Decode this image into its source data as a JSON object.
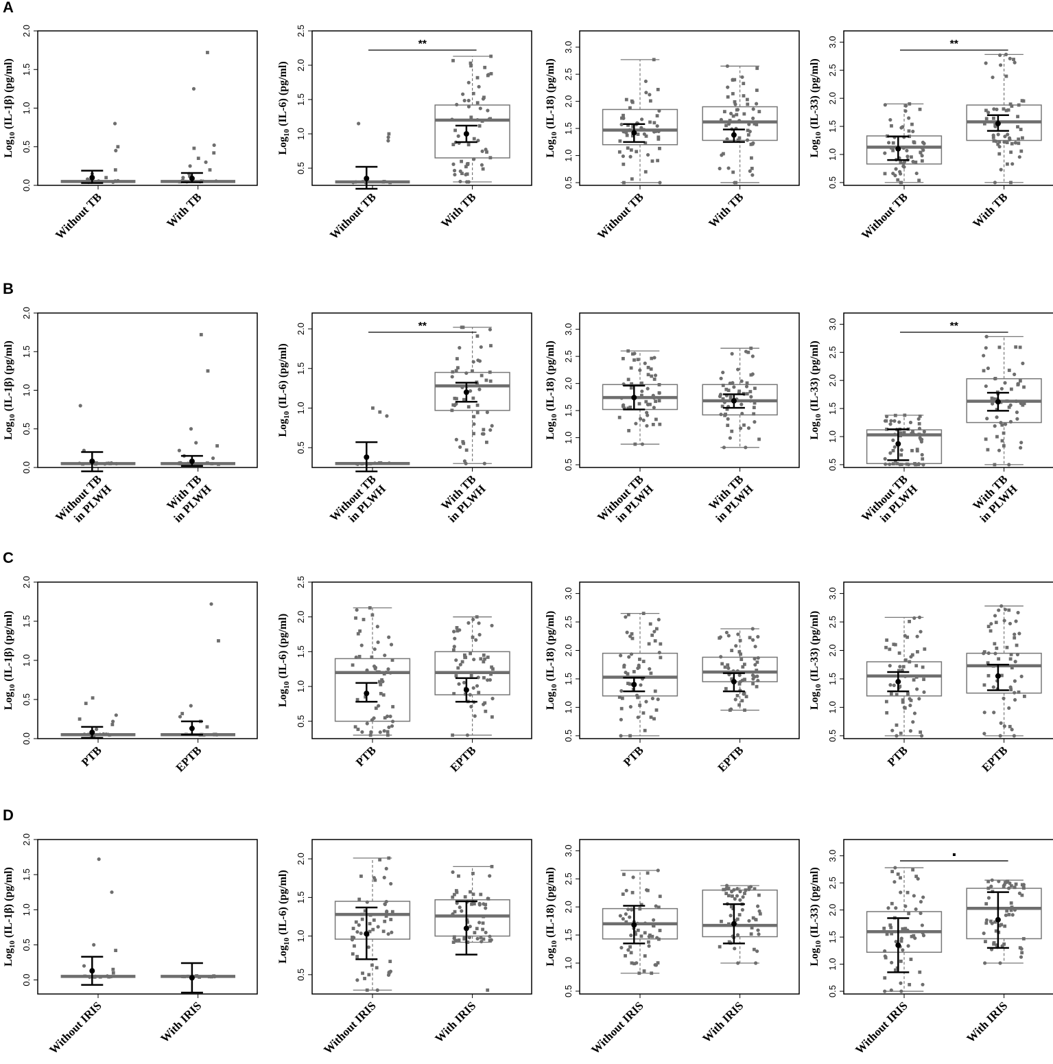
{
  "panel_letters": [
    "A",
    "B",
    "C",
    "D"
  ],
  "colors": {
    "box": "#777777",
    "median": "#6e6e6e",
    "point": "#6e6e6e",
    "errorbar": "#000000",
    "frame": "#000000"
  },
  "chart_data": [
    {
      "panel": "A",
      "type": "box",
      "ylabel": "Log10 (IL-1β) (pg/ml)",
      "ylim": [
        0,
        2
      ],
      "yticks": [
        "0.0",
        "0.5",
        "1.0",
        "1.5",
        "2.0"
      ],
      "categories": [
        "Without TB",
        "With TB"
      ],
      "groups": [
        {
          "q1": 0.05,
          "median": 0.05,
          "q3": 0.05,
          "whisker_low": 0.05,
          "whisker_high": 0.05,
          "mean": 0.1,
          "ci": [
            0.03,
            0.19
          ],
          "outliers": [
            0.8,
            0.5,
            0.45,
            0.2,
            0.15,
            0.1,
            0.08
          ]
        },
        {
          "q1": 0.05,
          "median": 0.05,
          "q3": 0.05,
          "whisker_low": 0.05,
          "whisker_high": 0.05,
          "mean": 0.09,
          "ci": [
            0.04,
            0.16
          ],
          "outliers": [
            1.72,
            1.25,
            0.52,
            0.48,
            0.42,
            0.35,
            0.3,
            0.25,
            0.2,
            0.15,
            0.12,
            0.1
          ]
        }
      ],
      "sig": ""
    },
    {
      "panel": "A",
      "type": "box",
      "ylabel": "Log10 (IL-6) (pg/ml)",
      "ylim": [
        0.25,
        2.5
      ],
      "yticks": [
        "0.5",
        "1.0",
        "1.5",
        "2.0",
        "2.5"
      ],
      "categories": [
        "Without TB",
        "With TB"
      ],
      "groups": [
        {
          "q1": 0.3,
          "median": 0.3,
          "q3": 0.3,
          "whisker_low": 0.3,
          "whisker_high": 0.3,
          "mean": 0.35,
          "ci": [
            0.2,
            0.52
          ],
          "outliers": [
            1.15,
            1.0,
            0.95,
            0.9
          ]
        },
        {
          "q1": 0.65,
          "median": 1.2,
          "q3": 1.42,
          "whisker_low": 0.3,
          "whisker_high": 2.13,
          "mean": 1.0,
          "ci": [
            0.88,
            1.12
          ]
        }
      ],
      "sig": "**"
    },
    {
      "panel": "A",
      "type": "box",
      "ylabel": "Log10 (IL-18) (pg/ml)",
      "ylim": [
        0.45,
        3.3
      ],
      "yticks": [
        "0.5",
        "1.0",
        "1.5",
        "2.0",
        "2.5",
        "3.0"
      ],
      "categories": [
        "Without TB",
        "With TB"
      ],
      "groups": [
        {
          "q1": 1.2,
          "median": 1.47,
          "q3": 1.85,
          "whisker_low": 0.5,
          "whisker_high": 2.77,
          "mean": 1.42,
          "ci": [
            1.25,
            1.58
          ]
        },
        {
          "q1": 1.28,
          "median": 1.62,
          "q3": 1.9,
          "whisker_low": 0.5,
          "whisker_high": 2.65,
          "mean": 1.38,
          "ci": [
            1.25,
            1.48
          ]
        }
      ],
      "sig": ""
    },
    {
      "panel": "A",
      "type": "box",
      "ylabel": "Log10 (IL-33) (pg/ml)",
      "ylim": [
        0.45,
        3.2
      ],
      "yticks": [
        "0.5",
        "1.0",
        "1.5",
        "2.0",
        "2.5",
        "3.0"
      ],
      "categories": [
        "Without TB",
        "With TB"
      ],
      "groups": [
        {
          "q1": 0.83,
          "median": 1.13,
          "q3": 1.33,
          "whisker_low": 0.5,
          "whisker_high": 1.9,
          "mean": 1.1,
          "ci": [
            0.9,
            1.32
          ]
        },
        {
          "q1": 1.25,
          "median": 1.58,
          "q3": 1.88,
          "whisker_low": 0.5,
          "whisker_high": 2.78,
          "mean": 1.55,
          "ci": [
            1.42,
            1.7
          ]
        }
      ],
      "sig": "**"
    },
    {
      "panel": "B",
      "type": "box",
      "ylabel": "Log10 (IL-1β) (pg/ml)",
      "ylim": [
        0,
        2
      ],
      "yticks": [
        "0.0",
        "0.5",
        "1.0",
        "1.5",
        "2.0"
      ],
      "categories": [
        "Without TB in PLWH",
        "With TB in PLWH"
      ],
      "groups": [
        {
          "q1": 0.05,
          "median": 0.05,
          "q3": 0.05,
          "whisker_low": 0.05,
          "whisker_high": 0.05,
          "mean": 0.08,
          "ci": [
            -0.05,
            0.2
          ],
          "outliers": [
            0.8,
            0.22
          ]
        },
        {
          "q1": 0.05,
          "median": 0.05,
          "q3": 0.05,
          "whisker_low": 0.05,
          "whisker_high": 0.05,
          "mean": 0.08,
          "ci": [
            0.02,
            0.15
          ],
          "outliers": [
            1.72,
            1.25,
            0.5,
            0.32,
            0.28,
            0.22,
            0.15,
            0.12
          ]
        }
      ],
      "sig": ""
    },
    {
      "panel": "B",
      "type": "box",
      "ylabel": "Log10 (IL-6) (pg/ml)",
      "ylim": [
        0.25,
        2.2
      ],
      "yticks": [
        "0.5",
        "1.0",
        "1.5",
        "2.0"
      ],
      "categories": [
        "Without TB in PLWH",
        "With TB in PLWH"
      ],
      "groups": [
        {
          "q1": 0.3,
          "median": 0.3,
          "q3": 0.3,
          "whisker_low": 0.3,
          "whisker_high": 0.3,
          "mean": 0.38,
          "ci": [
            0.2,
            0.57
          ],
          "outliers": [
            1.0,
            0.95,
            0.9
          ]
        },
        {
          "q1": 0.97,
          "median": 1.28,
          "q3": 1.45,
          "whisker_low": 0.3,
          "whisker_high": 2.02,
          "mean": 1.2,
          "ci": [
            1.08,
            1.32
          ]
        }
      ],
      "sig": "**"
    },
    {
      "panel": "B",
      "type": "box",
      "ylabel": "Log10 (IL-18) (pg/ml)",
      "ylim": [
        0.45,
        3.3
      ],
      "yticks": [
        "0.5",
        "1.0",
        "1.5",
        "2.0",
        "2.5",
        "3.0"
      ],
      "categories": [
        "Without TB in PLWH",
        "With TB in PLWH"
      ],
      "groups": [
        {
          "q1": 1.52,
          "median": 1.74,
          "q3": 1.98,
          "whisker_low": 0.88,
          "whisker_high": 2.6,
          "mean": 1.74,
          "ci": [
            1.52,
            1.96
          ]
        },
        {
          "q1": 1.42,
          "median": 1.68,
          "q3": 1.98,
          "whisker_low": 0.82,
          "whisker_high": 2.65,
          "mean": 1.68,
          "ci": [
            1.55,
            1.8
          ]
        }
      ],
      "sig": ""
    },
    {
      "panel": "B",
      "type": "box",
      "ylabel": "Log10 (IL-33) (pg/ml)",
      "ylim": [
        0.45,
        3.2
      ],
      "yticks": [
        "0.5",
        "1.0",
        "1.5",
        "2.0",
        "2.5",
        "3.0"
      ],
      "categories": [
        "Without TB in PLWH",
        "With TB in PLWH"
      ],
      "groups": [
        {
          "q1": 0.52,
          "median": 1.03,
          "q3": 1.12,
          "whisker_low": 0.5,
          "whisker_high": 1.38,
          "mean": 0.87,
          "ci": [
            0.58,
            1.13
          ]
        },
        {
          "q1": 1.25,
          "median": 1.63,
          "q3": 2.03,
          "whisker_low": 0.5,
          "whisker_high": 2.78,
          "mean": 1.62,
          "ci": [
            1.46,
            1.78
          ]
        }
      ],
      "sig": "**"
    },
    {
      "panel": "C",
      "type": "box",
      "ylabel": "Log10 (IL-1β) (pg/ml)",
      "ylim": [
        0,
        2
      ],
      "yticks": [
        "0.0",
        "0.5",
        "1.0",
        "1.5",
        "2.0"
      ],
      "categories": [
        "PTB",
        "EPTB"
      ],
      "groups": [
        {
          "q1": 0.05,
          "median": 0.05,
          "q3": 0.05,
          "whisker_low": 0.05,
          "whisker_high": 0.05,
          "mean": 0.08,
          "ci": [
            0.01,
            0.15
          ],
          "outliers": [
            0.52,
            0.45,
            0.3,
            0.25,
            0.22,
            0.18,
            0.12
          ]
        },
        {
          "q1": 0.05,
          "median": 0.05,
          "q3": 0.05,
          "whisker_low": 0.05,
          "whisker_high": 0.05,
          "mean": 0.13,
          "ci": [
            0.05,
            0.22
          ],
          "outliers": [
            1.72,
            1.25,
            0.42,
            0.32,
            0.28,
            0.22,
            0.15
          ]
        }
      ],
      "sig": ""
    },
    {
      "panel": "C",
      "type": "box",
      "ylabel": "Log10 (IL-6) (pg/ml)",
      "ylim": [
        0.25,
        2.5
      ],
      "yticks": [
        "0.5",
        "1.0",
        "1.5",
        "2.0",
        "2.5"
      ],
      "categories": [
        "PTB",
        "EPTB"
      ],
      "groups": [
        {
          "q1": 0.5,
          "median": 1.2,
          "q3": 1.4,
          "whisker_low": 0.3,
          "whisker_high": 2.13,
          "mean": 0.9,
          "ci": [
            0.78,
            1.05
          ]
        },
        {
          "q1": 0.88,
          "median": 1.2,
          "q3": 1.5,
          "whisker_low": 0.3,
          "whisker_high": 2.0,
          "mean": 0.95,
          "ci": [
            0.78,
            1.12
          ]
        }
      ],
      "sig": ""
    },
    {
      "panel": "C",
      "type": "box",
      "ylabel": "Log10 (IL-18) (pg/ml)",
      "ylim": [
        0.45,
        3.2
      ],
      "yticks": [
        "0.5",
        "1.0",
        "1.5",
        "2.0",
        "2.5",
        "3.0"
      ],
      "categories": [
        "PTB",
        "EPTB"
      ],
      "groups": [
        {
          "q1": 1.2,
          "median": 1.53,
          "q3": 1.95,
          "whisker_low": 0.5,
          "whisker_high": 2.65,
          "mean": 1.4,
          "ci": [
            1.28,
            1.52
          ]
        },
        {
          "q1": 1.45,
          "median": 1.62,
          "q3": 1.88,
          "whisker_low": 0.95,
          "whisker_high": 2.38,
          "mean": 1.45,
          "ci": [
            1.28,
            1.6
          ]
        }
      ],
      "sig": ""
    },
    {
      "panel": "C",
      "type": "box",
      "ylabel": "Log10 (IL-33) (pg/ml)",
      "ylim": [
        0.45,
        3.2
      ],
      "yticks": [
        "0.5",
        "1.0",
        "1.5",
        "2.0",
        "2.5",
        "3.0"
      ],
      "categories": [
        "PTB",
        "EPTB"
      ],
      "groups": [
        {
          "q1": 1.2,
          "median": 1.55,
          "q3": 1.8,
          "whisker_low": 0.5,
          "whisker_high": 2.58,
          "mean": 1.45,
          "ci": [
            1.28,
            1.62
          ]
        },
        {
          "q1": 1.25,
          "median": 1.73,
          "q3": 1.95,
          "whisker_low": 0.5,
          "whisker_high": 2.78,
          "mean": 1.55,
          "ci": [
            1.3,
            1.75
          ]
        }
      ],
      "sig": ""
    },
    {
      "panel": "D",
      "type": "box",
      "ylabel": "Log10 (IL-1β) (pg/ml)",
      "ylim": [
        -0.2,
        2
      ],
      "yticks": [
        "0.0",
        "0.5",
        "1.0",
        "1.5",
        "2.0"
      ],
      "categories": [
        "Without IRIS",
        "With IRIS"
      ],
      "groups": [
        {
          "q1": 0.05,
          "median": 0.05,
          "q3": 0.05,
          "whisker_low": 0.05,
          "whisker_high": 0.05,
          "mean": 0.13,
          "ci": [
            -0.07,
            0.33
          ],
          "outliers": [
            1.72,
            1.25,
            0.5,
            0.42,
            0.2,
            0.15,
            0.1
          ]
        },
        {
          "q1": 0.05,
          "median": 0.05,
          "q3": 0.05,
          "whisker_low": 0.05,
          "whisker_high": 0.05,
          "mean": 0.03,
          "ci": [
            -0.18,
            0.24
          ],
          "outliers": []
        }
      ],
      "sig": ""
    },
    {
      "panel": "D",
      "type": "box",
      "ylabel": "Log10 (IL-6) (pg/ml)",
      "ylim": [
        0.25,
        2.25
      ],
      "yticks": [
        "0.5",
        "1.0",
        "1.5",
        "2.0"
      ],
      "categories": [
        "Without IRIS",
        "With IRIS"
      ],
      "groups": [
        {
          "q1": 0.96,
          "median": 1.28,
          "q3": 1.45,
          "whisker_low": 0.3,
          "whisker_high": 2.01,
          "mean": 1.03,
          "ci": [
            0.7,
            1.37
          ]
        },
        {
          "q1": 1.0,
          "median": 1.26,
          "q3": 1.47,
          "whisker_low": 0.92,
          "whisker_high": 1.9,
          "mean": 1.1,
          "ci": [
            0.76,
            1.45
          ],
          "outliers": [
            0.3
          ]
        }
      ],
      "sig": ""
    },
    {
      "panel": "D",
      "type": "box",
      "ylabel": "Log10 (IL-18) (pg/ml)",
      "ylim": [
        0.45,
        3.2
      ],
      "yticks": [
        "0.5",
        "1.0",
        "1.5",
        "2.0",
        "2.5",
        "3.0"
      ],
      "categories": [
        "Without IRIS",
        "With IRIS"
      ],
      "groups": [
        {
          "q1": 1.43,
          "median": 1.7,
          "q3": 1.97,
          "whisker_low": 0.82,
          "whisker_high": 2.65,
          "mean": 1.68,
          "ci": [
            1.35,
            2.02
          ]
        },
        {
          "q1": 1.47,
          "median": 1.67,
          "q3": 2.3,
          "whisker_low": 1.0,
          "whisker_high": 2.38,
          "mean": 1.7,
          "ci": [
            1.35,
            2.05
          ]
        }
      ],
      "sig": ""
    },
    {
      "panel": "D",
      "type": "box",
      "ylabel": "Log10 (IL-33) (pg/ml)",
      "ylim": [
        0.45,
        3.3
      ],
      "yticks": [
        "0.5",
        "1.0",
        "1.5",
        "2.0",
        "2.5",
        "3.0"
      ],
      "categories": [
        "Without IRIS",
        "With IRIS"
      ],
      "groups": [
        {
          "q1": 1.22,
          "median": 1.6,
          "q3": 1.97,
          "whisker_low": 0.5,
          "whisker_high": 2.78,
          "mean": 1.35,
          "ci": [
            0.85,
            1.85
          ]
        },
        {
          "q1": 1.47,
          "median": 2.03,
          "q3": 2.4,
          "whisker_low": 1.02,
          "whisker_high": 2.55,
          "mean": 1.82,
          "ci": [
            1.3,
            2.33
          ]
        }
      ],
      "sig": "▪"
    }
  ]
}
